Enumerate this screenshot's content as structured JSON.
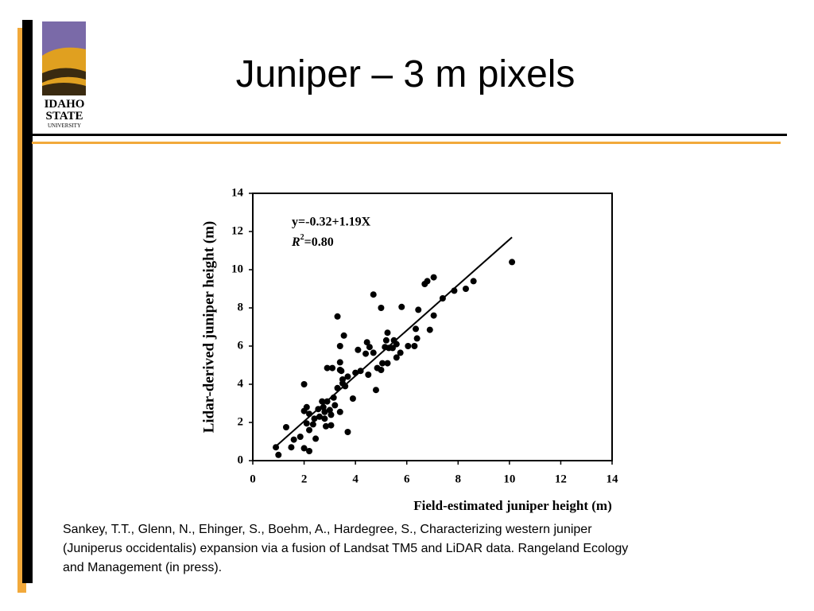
{
  "slide": {
    "title": "Juniper – 3 m pixels",
    "logo": [
      "IDAHO",
      "STATE",
      "UNIVERSITY"
    ],
    "citation": [
      "Sankey, T.T., Glenn, N., Ehinger, S., Boehm, A., Hardegree, S., Characterizing western juniper",
      "(Juniperus occidentalis) expansion via a fusion of Landsat TM5 and LiDAR data. Rangeland Ecology",
      "and Management (in press)."
    ]
  },
  "chart_data": {
    "type": "scatter",
    "x_label": "Field-estimated juniper height (m)",
    "y_label": "Lidar-derived juniper height (m)",
    "equation": "y=-0.32+1.19X",
    "r2": [
      "R",
      "2",
      "=0.80"
    ],
    "color": "#000000",
    "xlim": [
      0,
      14
    ],
    "ylim": [
      0,
      14
    ],
    "xticks": [
      0,
      2,
      4,
      6,
      8,
      10,
      12,
      14
    ],
    "yticks": [
      0,
      2,
      4,
      6,
      8,
      10,
      12,
      14
    ],
    "trend_line": {
      "x": [
        0.9,
        10.1
      ],
      "y": [
        0.75,
        11.7
      ]
    },
    "x": [
      0.9,
      1.0,
      1.3,
      1.6,
      1.5,
      1.85,
      2.0,
      2.0,
      2.2,
      2.0,
      2.1,
      2.1,
      2.2,
      2.2,
      2.35,
      2.4,
      2.45,
      2.55,
      2.6,
      2.7,
      2.75,
      2.8,
      2.8,
      2.85,
      2.9,
      2.9,
      3.0,
      3.05,
      3.05,
      3.1,
      3.15,
      3.2,
      3.3,
      3.3,
      3.4,
      3.4,
      3.4,
      3.4,
      3.45,
      3.5,
      3.5,
      3.55,
      3.6,
      3.7,
      3.7,
      3.9,
      4.0,
      4.1,
      4.2,
      4.4,
      4.45,
      4.5,
      4.55,
      4.7,
      4.7,
      4.8,
      4.85,
      5.0,
      5.0,
      5.05,
      5.15,
      5.2,
      5.25,
      5.25,
      5.3,
      5.45,
      5.5,
      5.6,
      5.6,
      5.75,
      5.8,
      6.05,
      6.3,
      6.35,
      6.4,
      6.45,
      6.7,
      6.8,
      6.9,
      7.05,
      7.05,
      7.4,
      7.85,
      8.3,
      8.6,
      10.1
    ],
    "values": [
      0.7,
      0.3,
      1.75,
      1.1,
      0.7,
      1.25,
      4.0,
      0.65,
      0.5,
      2.6,
      2.8,
      1.95,
      2.45,
      1.6,
      1.9,
      2.2,
      1.15,
      2.7,
      2.3,
      3.1,
      2.8,
      2.2,
      2.55,
      1.8,
      4.85,
      3.1,
      2.65,
      2.4,
      1.85,
      4.85,
      3.3,
      2.9,
      7.55,
      3.8,
      4.75,
      2.55,
      6.0,
      5.15,
      4.7,
      4.25,
      4.05,
      6.55,
      3.9,
      1.5,
      4.4,
      3.25,
      4.6,
      5.8,
      4.7,
      5.6,
      6.2,
      4.5,
      5.95,
      5.65,
      8.7,
      3.7,
      4.85,
      8.0,
      4.75,
      5.1,
      5.95,
      6.3,
      5.1,
      6.7,
      5.9,
      5.9,
      6.3,
      6.1,
      5.4,
      5.65,
      8.05,
      6.0,
      6.0,
      6.9,
      6.4,
      7.9,
      9.25,
      9.4,
      6.85,
      7.6,
      9.6,
      8.5,
      8.9,
      9.0,
      9.4,
      10.4
    ]
  }
}
